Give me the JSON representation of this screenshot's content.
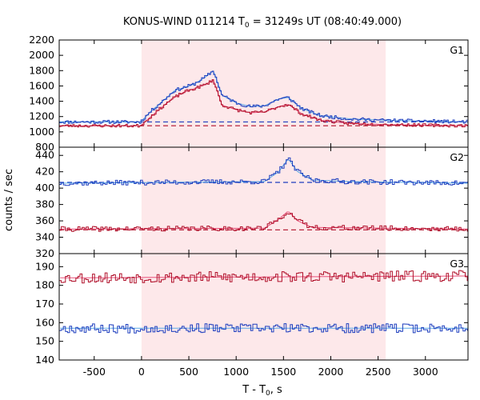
{
  "chart_data": {
    "type": "line",
    "title_main": "KONUS-WIND 011214 T",
    "title_sub": "0",
    "title_rest": " = 31249s UT (08:40:49.000)",
    "xlabel_main": "T - T",
    "xlabel_sub": "0",
    "xlabel_rest": ", s",
    "ylabel": "counts / sec",
    "xlim": [
      -870,
      3450
    ],
    "xticks": [
      -500,
      0,
      500,
      1000,
      1500,
      2000,
      2500,
      3000
    ],
    "highlight_interval": [
      0,
      2580
    ],
    "highlight_color": "#fde8ea",
    "colors": {
      "blue": "#1f3fbf",
      "lightblue": "#5aa9e6",
      "red": "#b0102a",
      "pink": "#e8507a"
    },
    "panels": [
      {
        "label": "G1",
        "ylim": [
          800,
          2200
        ],
        "yticks": [
          800,
          1000,
          1200,
          1400,
          1600,
          1800,
          2000,
          2200
        ],
        "backgrounds": [
          {
            "color": "blue",
            "value": 1130
          },
          {
            "color": "red",
            "value": 1080
          }
        ],
        "series": [
          {
            "color": "blue",
            "fit": "lightblue",
            "profile": [
              [
                -870,
                1130
              ],
              [
                -10,
                1130
              ],
              [
                100,
                1270
              ],
              [
                250,
                1430
              ],
              [
                350,
                1540
              ],
              [
                450,
                1580
              ],
              [
                550,
                1620
              ],
              [
                680,
                1720
              ],
              [
                760,
                1800
              ],
              [
                850,
                1480
              ],
              [
                1000,
                1380
              ],
              [
                1150,
                1330
              ],
              [
                1300,
                1340
              ],
              [
                1450,
                1430
              ],
              [
                1550,
                1450
              ],
              [
                1700,
                1300
              ],
              [
                1900,
                1210
              ],
              [
                2200,
                1170
              ],
              [
                2600,
                1150
              ],
              [
                3450,
                1130
              ]
            ],
            "noise": 22,
            "seed": 11
          },
          {
            "color": "red",
            "fit": "pink",
            "profile": [
              [
                -870,
                1080
              ],
              [
                -10,
                1080
              ],
              [
                100,
                1200
              ],
              [
                250,
                1360
              ],
              [
                350,
                1450
              ],
              [
                450,
                1520
              ],
              [
                550,
                1560
              ],
              [
                680,
                1620
              ],
              [
                760,
                1680
              ],
              [
                850,
                1350
              ],
              [
                1000,
                1290
              ],
              [
                1150,
                1250
              ],
              [
                1300,
                1260
              ],
              [
                1450,
                1330
              ],
              [
                1550,
                1360
              ],
              [
                1700,
                1230
              ],
              [
                1900,
                1150
              ],
              [
                2200,
                1110
              ],
              [
                2600,
                1095
              ],
              [
                3450,
                1080
              ]
            ],
            "noise": 20,
            "seed": 23
          }
        ]
      },
      {
        "label": "G2",
        "ylim": [
          320,
          450
        ],
        "yticks": [
          320,
          340,
          360,
          380,
          400,
          420,
          440
        ],
        "backgrounds": [
          {
            "color": "blue",
            "value": 407
          },
          {
            "color": "red",
            "value": 349
          }
        ],
        "series": [
          {
            "color": "blue",
            "fit": "lightblue",
            "profile": [
              [
                -870,
                406
              ],
              [
                1300,
                408
              ],
              [
                1450,
                420
              ],
              [
                1550,
                436
              ],
              [
                1650,
                420
              ],
              [
                1800,
                410
              ],
              [
                2200,
                408
              ],
              [
                3450,
                406
              ]
            ],
            "noise": 3,
            "seed": 37
          },
          {
            "color": "red",
            "fit": "pink",
            "profile": [
              [
                -870,
                350
              ],
              [
                1300,
                351
              ],
              [
                1450,
                362
              ],
              [
                1550,
                372
              ],
              [
                1650,
                360
              ],
              [
                1800,
                352
              ],
              [
                3450,
                350
              ]
            ],
            "noise": 3,
            "seed": 41
          }
        ]
      },
      {
        "label": "G3",
        "ylim": [
          140,
          197
        ],
        "yticks": [
          140,
          150,
          160,
          170,
          180,
          190
        ],
        "backgrounds": [],
        "series": [
          {
            "color": "red",
            "fit": "pink",
            "profile": [
              [
                -870,
                184
              ],
              [
                3450,
                185
              ]
            ],
            "noise": 3,
            "seed": 53
          },
          {
            "color": "blue",
            "fit": "lightblue",
            "profile": [
              [
                -870,
                157
              ],
              [
                3450,
                157
              ]
            ],
            "noise": 2.5,
            "seed": 67
          }
        ]
      }
    ]
  }
}
